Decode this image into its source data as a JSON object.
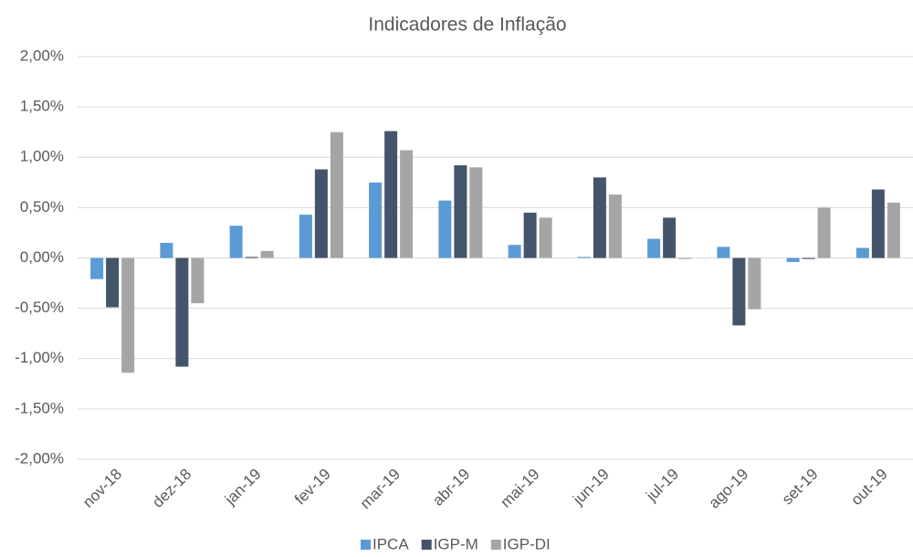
{
  "chart_data": {
    "type": "bar",
    "title": "Indicadores de Inflação",
    "categories": [
      "nov-18",
      "dez-18",
      "jan-19",
      "fev-19",
      "mar-19",
      "abr-19",
      "mai-19",
      "jun-19",
      "jul-19",
      "ago-19",
      "set-19",
      "out-19"
    ],
    "series": [
      {
        "name": "IPCA",
        "color": "#5b9bd5",
        "values": [
          -0.21,
          0.15,
          0.32,
          0.43,
          0.75,
          0.57,
          0.13,
          0.01,
          0.19,
          0.11,
          -0.04,
          0.1
        ]
      },
      {
        "name": "IGP-M",
        "color": "#44546a",
        "values": [
          -0.49,
          -1.08,
          0.01,
          0.88,
          1.26,
          0.92,
          0.45,
          0.8,
          0.4,
          -0.67,
          -0.01,
          0.68
        ]
      },
      {
        "name": "IGP-DI",
        "color": "#a5a5a5",
        "values": [
          -1.14,
          -0.45,
          0.07,
          1.25,
          1.07,
          0.9,
          0.4,
          0.63,
          -0.01,
          -0.51,
          0.5,
          0.55
        ]
      }
    ],
    "ylim": [
      -2,
      2
    ],
    "yticks": [
      {
        "value": -2,
        "label": "-2,00%"
      },
      {
        "value": -1.5,
        "label": "-1,50%"
      },
      {
        "value": -1,
        "label": "-1,00%"
      },
      {
        "value": -0.5,
        "label": "-0,50%"
      },
      {
        "value": 0,
        "label": "0,00%"
      },
      {
        "value": 0.5,
        "label": "0,50%"
      },
      {
        "value": 1,
        "label": "1,00%"
      },
      {
        "value": 1.5,
        "label": "1,50%"
      },
      {
        "value": 2,
        "label": "2,00%"
      }
    ],
    "grid": true,
    "legend": "bottom"
  }
}
